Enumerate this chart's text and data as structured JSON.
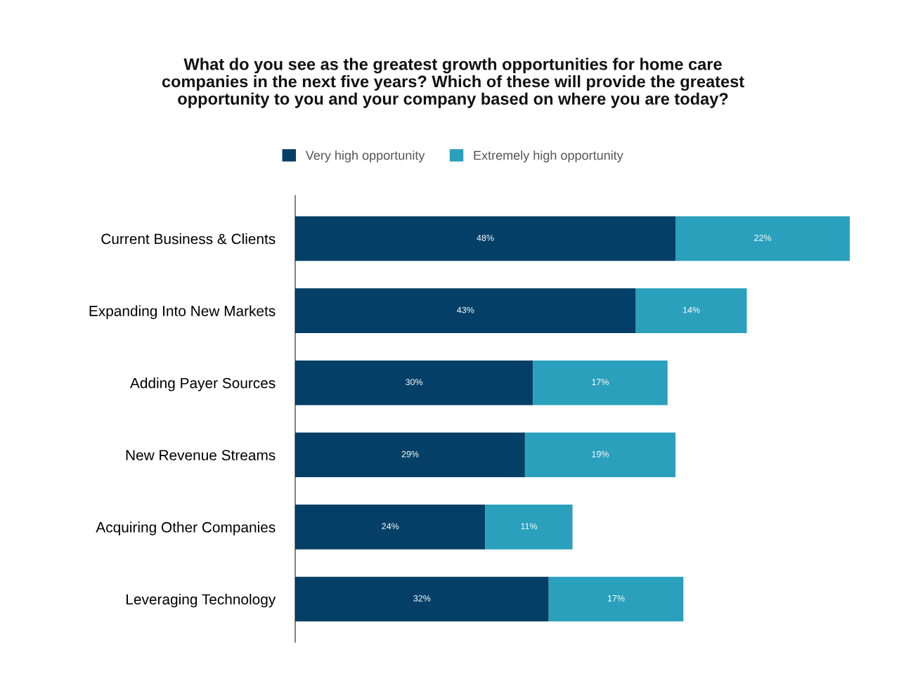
{
  "chart_data": {
    "type": "bar",
    "orientation": "horizontal",
    "stacked": true,
    "title": "What do you see as the greatest growth opportunities for home care\ncompanies in the next five years? Which of these will provide the greatest\nopportunity to you and your company based on where you are today?",
    "categories": [
      "Current Business & Clients",
      "Expanding Into New Markets",
      "Adding Payer Sources",
      "New Revenue Streams",
      "Acquiring Other Companies",
      "Leveraging Technology"
    ],
    "series": [
      {
        "name": "Very high opportunity",
        "color": "#033f66",
        "values": [
          48,
          43,
          30,
          29,
          24,
          32
        ],
        "value_labels": [
          "48%",
          "43%",
          "30%",
          "29%",
          "24%",
          "32%"
        ]
      },
      {
        "name": "Extremely high opportunity",
        "color": "#2aa0bc",
        "values": [
          22,
          14,
          17,
          19,
          11,
          17
        ],
        "value_labels": [
          "22%",
          "14%",
          "17%",
          "19%",
          "11%",
          "17%"
        ]
      }
    ],
    "legend": "top",
    "grid": false
  }
}
